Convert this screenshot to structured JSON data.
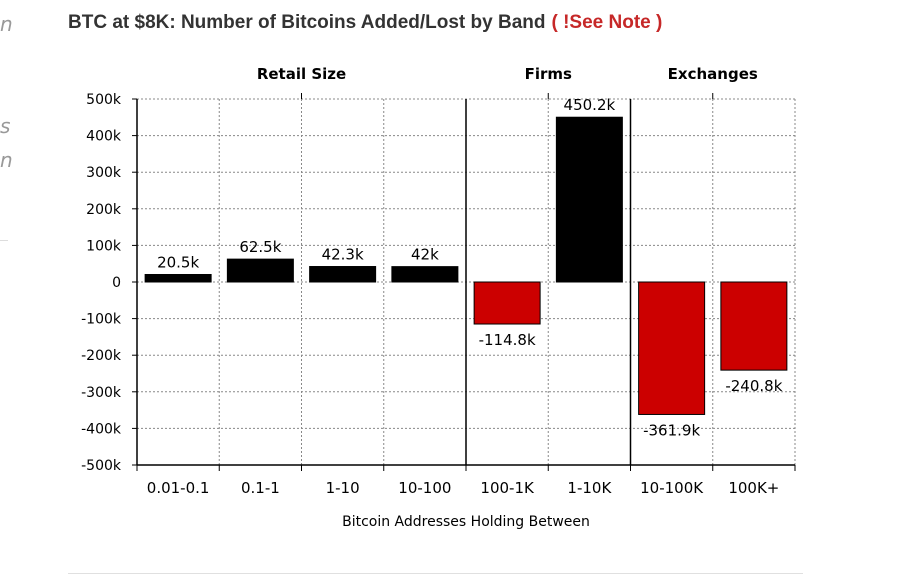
{
  "page": {
    "title": "BTC at $8K: Number of Bitcoins Added/Lost by Band",
    "note_link": "( !See Note )",
    "side_fragments": [
      "n",
      "s",
      "n"
    ]
  },
  "colors": {
    "positive": "#000000",
    "negative": "#cc0000",
    "note": "#c62828",
    "title": "#333333"
  },
  "chart_data": {
    "type": "bar",
    "title": "BTC at $8K: Number of Bitcoins Added/Lost by Band",
    "xlabel": "Bitcoin Addresses Holding Between",
    "ylabel": "",
    "ylim": [
      -500000,
      500000
    ],
    "yticks": [
      500000,
      400000,
      300000,
      200000,
      100000,
      0,
      -100000,
      -200000,
      -300000,
      -400000,
      -500000
    ],
    "yticklabels": [
      "500k",
      "400k",
      "300k",
      "200k",
      "100k",
      "0",
      "-100k",
      "-200k",
      "-300k",
      "-400k",
      "-500k"
    ],
    "categories": [
      "0.01-0.1",
      "0.1-1",
      "1-10",
      "10-100",
      "100-1K",
      "1-10K",
      "10-100K",
      "100K+"
    ],
    "values": [
      20500,
      62500,
      42300,
      42000,
      -114800,
      450200,
      -361900,
      -240800
    ],
    "data_labels": [
      "20.5k",
      "62.5k",
      "42.3k",
      "42k",
      "-114.8k",
      "450.2k",
      "-361.9k",
      "-240.8k"
    ],
    "groups": [
      {
        "name": "Retail Size",
        "start": 0,
        "end": 3
      },
      {
        "name": "Firms",
        "start": 4,
        "end": 5
      },
      {
        "name": "Exchanges",
        "start": 6,
        "end": 7
      }
    ],
    "grid": true,
    "legend": "none"
  }
}
